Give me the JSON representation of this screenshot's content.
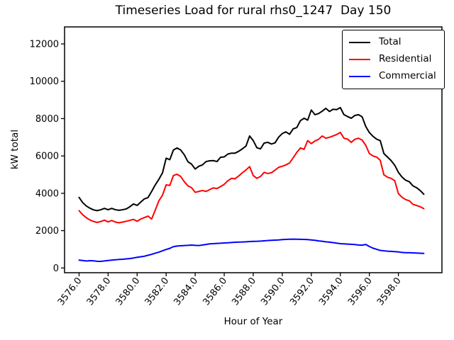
{
  "chart_data": {
    "type": "line",
    "title": "Timeseries Load for rural rhs0_1247  Day 150",
    "xlabel": "Hour of Year",
    "ylabel": "kW total",
    "x_start": 3576.0,
    "x_step": 0.25,
    "xlim": [
      3575.0,
      3601.0
    ],
    "ylim": [
      -254,
      12911
    ],
    "grid": false,
    "x_ticks": [
      3576,
      3578,
      3580,
      3582,
      3584,
      3586,
      3588,
      3590,
      3592,
      3594,
      3596,
      3598
    ],
    "x_tick_labels": [
      "3576.0",
      "3578.0",
      "3580.0",
      "3582.0",
      "3584.0",
      "3586.0",
      "3588.0",
      "3590.0",
      "3592.0",
      "3594.0",
      "3596.0",
      "3598.0"
    ],
    "y_ticks": [
      0,
      2000,
      4000,
      6000,
      8000,
      10000,
      12000
    ],
    "y_tick_labels": [
      "0",
      "2000",
      "4000",
      "6000",
      "8000",
      "10000",
      "12000"
    ],
    "legend": {
      "position": "upper right",
      "entries": [
        "Total",
        "Residential",
        "Commercial"
      ]
    },
    "series": [
      {
        "name": "Total",
        "color": "#000000",
        "values": [
          3780,
          3500,
          3320,
          3200,
          3110,
          3070,
          3120,
          3190,
          3120,
          3190,
          3120,
          3090,
          3120,
          3160,
          3280,
          3430,
          3350,
          3530,
          3700,
          3770,
          4100,
          4450,
          4750,
          5100,
          5880,
          5800,
          6320,
          6430,
          6320,
          6060,
          5690,
          5560,
          5300,
          5450,
          5520,
          5700,
          5740,
          5750,
          5700,
          5930,
          5950,
          6100,
          6150,
          6150,
          6250,
          6380,
          6530,
          7070,
          6820,
          6440,
          6380,
          6690,
          6730,
          6640,
          6700,
          7010,
          7200,
          7290,
          7160,
          7450,
          7520,
          7890,
          8020,
          7920,
          8460,
          8210,
          8270,
          8400,
          8550,
          8380,
          8500,
          8480,
          8590,
          8210,
          8110,
          8020,
          8170,
          8210,
          8100,
          7580,
          7250,
          7050,
          6900,
          6820,
          6130,
          5940,
          5750,
          5500,
          5120,
          4870,
          4700,
          4620,
          4400,
          4300,
          4150,
          3950
        ]
      },
      {
        "name": "Residential",
        "color": "#ff0000",
        "values": [
          3070,
          2850,
          2690,
          2570,
          2490,
          2440,
          2490,
          2560,
          2470,
          2540,
          2460,
          2420,
          2460,
          2500,
          2550,
          2600,
          2500,
          2620,
          2700,
          2780,
          2620,
          3100,
          3600,
          3900,
          4450,
          4420,
          4950,
          5020,
          4900,
          4620,
          4400,
          4300,
          4050,
          4100,
          4150,
          4100,
          4200,
          4290,
          4250,
          4360,
          4480,
          4670,
          4800,
          4780,
          4930,
          5100,
          5250,
          5430,
          4950,
          4800,
          4900,
          5120,
          5060,
          5100,
          5240,
          5390,
          5450,
          5520,
          5620,
          5900,
          6190,
          6430,
          6350,
          6820,
          6660,
          6800,
          6890,
          7070,
          6950,
          7000,
          7070,
          7150,
          7260,
          6950,
          6900,
          6730,
          6890,
          6950,
          6850,
          6570,
          6130,
          6000,
          5940,
          5770,
          4990,
          4860,
          4800,
          4670,
          3980,
          3790,
          3660,
          3600,
          3410,
          3350,
          3280,
          3180
        ]
      },
      {
        "name": "Commercial",
        "color": "#0000ff",
        "values": [
          420,
          400,
          370,
          390,
          380,
          360,
          355,
          375,
          400,
          420,
          440,
          455,
          465,
          485,
          505,
          535,
          570,
          600,
          630,
          680,
          730,
          790,
          850,
          920,
          990,
          1050,
          1140,
          1175,
          1190,
          1200,
          1210,
          1225,
          1210,
          1200,
          1230,
          1260,
          1290,
          1300,
          1315,
          1325,
          1340,
          1350,
          1365,
          1375,
          1385,
          1390,
          1400,
          1415,
          1425,
          1430,
          1440,
          1455,
          1470,
          1480,
          1490,
          1500,
          1520,
          1530,
          1540,
          1545,
          1540,
          1535,
          1530,
          1520,
          1500,
          1480,
          1450,
          1430,
          1400,
          1380,
          1360,
          1330,
          1300,
          1290,
          1280,
          1270,
          1255,
          1230,
          1220,
          1260,
          1150,
          1060,
          1000,
          940,
          920,
          900,
          890,
          875,
          860,
          830,
          820,
          820,
          810,
          800,
          790,
          780
        ]
      }
    ]
  }
}
